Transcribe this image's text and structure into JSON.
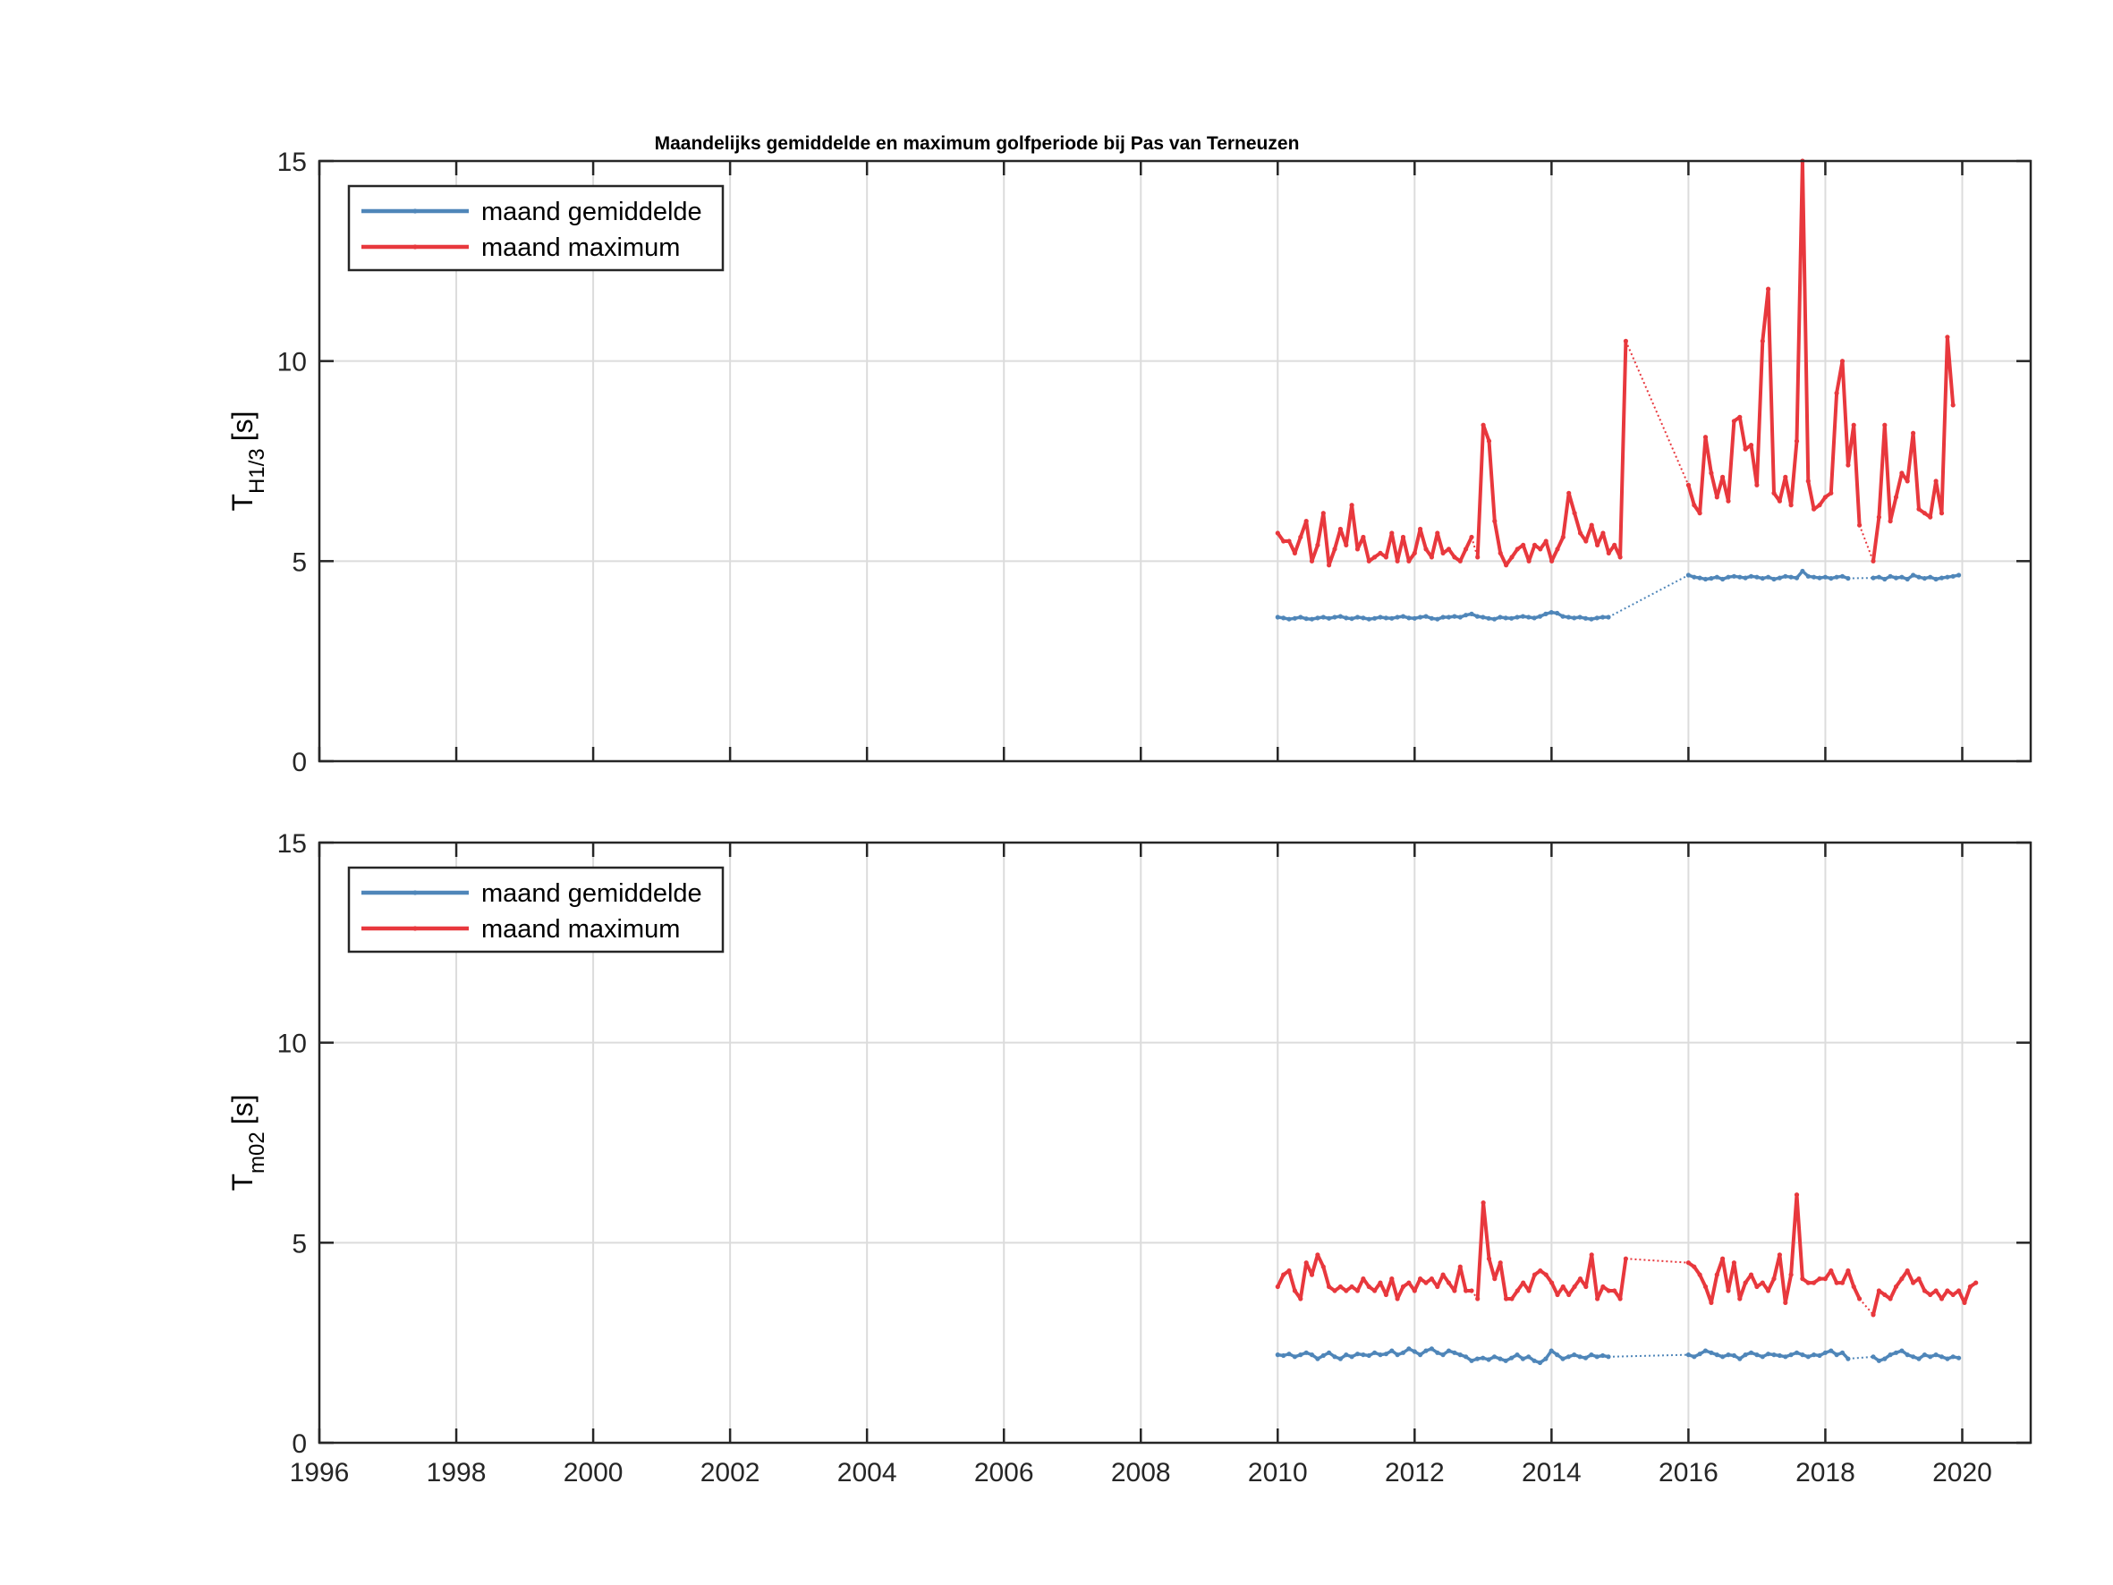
{
  "chart_data": [
    {
      "type": "line",
      "title": "Maandelijks gemiddelde en maximum golfperiode bij Pas van Terneuzen",
      "ylabel_main": "T",
      "ylabel_sub": "H1/3",
      "ylabel_unit": "[s]",
      "xlim": [
        1996,
        2021
      ],
      "ylim": [
        0,
        15
      ],
      "xticks": [
        "1996",
        "1998",
        "2000",
        "2002",
        "2004",
        "2006",
        "2008",
        "2010",
        "2012",
        "2014",
        "2016",
        "2018",
        "2020"
      ],
      "yticks": [
        "0",
        "5",
        "10",
        "15"
      ],
      "grid": true,
      "legend_position": "top-left",
      "series": [
        {
          "name": "maand gemiddelde",
          "color": "#4f86b9",
          "segments": [
            {
              "start": 2010.0,
              "step": 0.0833,
              "values": [
                3.6,
                3.58,
                3.55,
                3.57,
                3.6,
                3.56,
                3.55,
                3.58,
                3.6,
                3.57,
                3.6,
                3.62,
                3.58,
                3.56,
                3.6,
                3.58,
                3.55,
                3.57,
                3.6,
                3.58,
                3.57,
                3.6,
                3.62,
                3.58,
                3.57,
                3.6,
                3.62,
                3.57,
                3.55,
                3.6,
                3.6,
                3.62,
                3.6,
                3.65,
                3.68,
                3.62,
                3.6,
                3.57,
                3.55,
                3.6,
                3.58,
                3.57,
                3.6,
                3.62,
                3.6,
                3.58,
                3.62,
                3.68,
                3.72,
                3.7,
                3.62,
                3.6,
                3.58,
                3.6,
                3.57,
                3.55,
                3.58,
                3.6,
                3.6
              ]
            },
            {
              "start": 2016.0,
              "step": 0.0833,
              "values": [
                4.65,
                4.6,
                4.58,
                4.55,
                4.57,
                4.6,
                4.55,
                4.6,
                4.62,
                4.6,
                4.58,
                4.62,
                4.6,
                4.57,
                4.6,
                4.55,
                4.58,
                4.62,
                4.6,
                4.58,
                4.75,
                4.62,
                4.6,
                4.58,
                4.6,
                4.57,
                4.6,
                4.62,
                4.57
              ]
            },
            {
              "start": 2018.7,
              "step": 0.0833,
              "values": [
                4.58,
                4.6,
                4.55,
                4.62,
                4.58,
                4.6,
                4.55,
                4.65,
                4.6,
                4.57,
                4.6,
                4.55,
                4.58,
                4.6,
                4.62,
                4.65
              ]
            }
          ]
        },
        {
          "name": "maand maximum",
          "color": "#e8383d",
          "segments": [
            {
              "start": 2010.0,
              "step": 0.0833,
              "values": [
                5.7,
                5.5,
                5.5,
                5.2,
                5.6,
                6.0,
                5.0,
                5.4,
                6.2,
                4.9,
                5.3,
                5.8,
                5.4,
                6.4,
                5.3,
                5.6,
                5.0,
                5.1,
                5.2,
                5.1,
                5.7,
                5.0,
                5.6,
                5.0,
                5.2,
                5.8,
                5.3,
                5.1,
                5.7,
                5.2,
                5.3,
                5.1,
                5.0,
                5.3,
                5.6
              ]
            },
            {
              "start": 2012.92,
              "step": 0.0833,
              "values": [
                5.1,
                8.4,
                8.0,
                6.0,
                5.2,
                4.9,
                5.1,
                5.3,
                5.4,
                5.0,
                5.4,
                5.3,
                5.5,
                5.0,
                5.3,
                5.6,
                6.7,
                6.2,
                5.7,
                5.5,
                5.9,
                5.4,
                5.7,
                5.2,
                5.4,
                5.1,
                10.5
              ]
            },
            {
              "start": 2016.0,
              "step": 0.0833,
              "values": [
                6.9,
                6.4,
                6.2,
                8.1,
                7.2,
                6.6,
                7.1,
                6.5,
                8.5,
                8.6,
                7.8,
                7.9,
                6.9,
                10.5,
                11.8,
                6.7,
                6.5,
                7.1,
                6.4,
                8.0,
                15.0,
                7.0,
                6.3,
                6.4,
                6.6,
                6.7,
                9.2,
                10.0,
                7.4,
                8.4,
                5.9
              ]
            },
            {
              "start": 2018.7,
              "step": 0.0833,
              "values": [
                5.0,
                6.1,
                8.4,
                6.0,
                6.6,
                7.2,
                7.0,
                8.2,
                6.3,
                6.2,
                6.1,
                7.0,
                6.2,
                10.6,
                8.9
              ]
            }
          ]
        }
      ]
    },
    {
      "type": "line",
      "ylabel_main": "T",
      "ylabel_sub": "m02",
      "ylabel_unit": "[s]",
      "xlim": [
        1996,
        2021
      ],
      "ylim": [
        0,
        15
      ],
      "xticks": [
        "1996",
        "1998",
        "2000",
        "2002",
        "2004",
        "2006",
        "2008",
        "2010",
        "2012",
        "2014",
        "2016",
        "2018",
        "2020"
      ],
      "yticks": [
        "0",
        "5",
        "10",
        "15"
      ],
      "grid": true,
      "legend_position": "top-left",
      "series": [
        {
          "name": "maand gemiddelde",
          "color": "#4f86b9",
          "segments": [
            {
              "start": 2010.0,
              "step": 0.0833,
              "values": [
                2.2,
                2.18,
                2.22,
                2.15,
                2.2,
                2.25,
                2.2,
                2.1,
                2.18,
                2.25,
                2.15,
                2.1,
                2.2,
                2.15,
                2.22,
                2.2,
                2.18,
                2.25,
                2.2,
                2.22,
                2.3,
                2.2,
                2.25,
                2.35,
                2.28,
                2.2,
                2.3,
                2.35,
                2.25,
                2.2,
                2.3,
                2.25,
                2.2,
                2.15,
                2.05,
                2.1,
                2.12,
                2.08,
                2.15,
                2.1,
                2.05,
                2.12,
                2.2,
                2.1,
                2.15,
                2.05,
                2.0,
                2.1,
                2.3,
                2.2,
                2.1,
                2.15,
                2.2,
                2.15,
                2.12,
                2.2,
                2.15,
                2.18,
                2.15
              ]
            },
            {
              "start": 2016.0,
              "step": 0.0833,
              "values": [
                2.2,
                2.15,
                2.22,
                2.3,
                2.25,
                2.2,
                2.15,
                2.2,
                2.18,
                2.1,
                2.2,
                2.25,
                2.2,
                2.15,
                2.22,
                2.2,
                2.18,
                2.15,
                2.2,
                2.25,
                2.2,
                2.15,
                2.2,
                2.18,
                2.25,
                2.3,
                2.2,
                2.25,
                2.1
              ]
            },
            {
              "start": 2018.7,
              "step": 0.0833,
              "values": [
                2.15,
                2.05,
                2.1,
                2.2,
                2.25,
                2.3,
                2.2,
                2.15,
                2.1,
                2.2,
                2.15,
                2.2,
                2.15,
                2.1,
                2.15,
                2.12
              ]
            }
          ]
        },
        {
          "name": "maand maximum",
          "color": "#e8383d",
          "segments": [
            {
              "start": 2010.0,
              "step": 0.0833,
              "values": [
                3.9,
                4.2,
                4.3,
                3.8,
                3.6,
                4.5,
                4.2,
                4.7,
                4.4,
                3.9,
                3.8,
                3.9,
                3.8,
                3.9,
                3.8,
                4.1,
                3.9,
                3.8,
                4.0,
                3.7,
                4.1,
                3.6,
                3.9,
                4.0,
                3.8,
                4.1,
                4.0,
                4.1,
                3.9,
                4.2,
                4.0,
                3.8,
                4.4,
                3.8,
                3.8
              ]
            },
            {
              "start": 2012.92,
              "step": 0.0833,
              "values": [
                3.6,
                6.0,
                4.6,
                4.1,
                4.5,
                3.6,
                3.6,
                3.8,
                4.0,
                3.8,
                4.2,
                4.3,
                4.2,
                4.0,
                3.7,
                3.9,
                3.7,
                3.9,
                4.1,
                3.9,
                4.7,
                3.6,
                3.9,
                3.8,
                3.8,
                3.6,
                4.6
              ]
            },
            {
              "start": 2016.0,
              "step": 0.0833,
              "values": [
                4.5,
                4.4,
                4.2,
                3.9,
                3.5,
                4.2,
                4.6,
                3.8,
                4.5,
                3.6,
                4.0,
                4.2,
                3.9,
                4.0,
                3.8,
                4.1,
                4.7,
                3.5,
                4.2,
                6.2,
                4.1,
                4.0,
                4.0,
                4.1,
                4.1,
                4.3,
                4.0,
                4.0,
                4.3,
                3.9,
                3.6
              ]
            },
            {
              "start": 2018.7,
              "step": 0.0833,
              "values": [
                3.2,
                3.8,
                3.7,
                3.6,
                3.9,
                4.1,
                4.3,
                4.0,
                4.1,
                3.8,
                3.7,
                3.8,
                3.6,
                3.8,
                3.7,
                3.8,
                3.5,
                3.9,
                4.0
              ]
            }
          ]
        }
      ]
    }
  ]
}
